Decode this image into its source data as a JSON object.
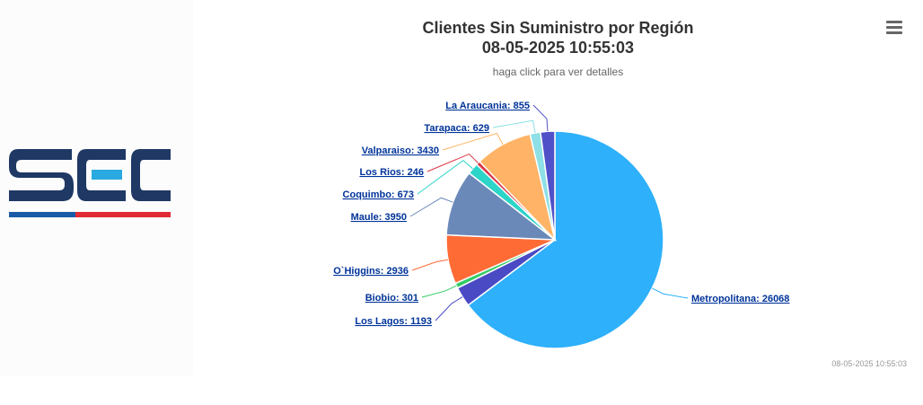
{
  "logo": {
    "text": "SEC",
    "colors": {
      "navy": "#1f3864",
      "light_blue": "#29a9e0",
      "red": "#e02b35",
      "blue": "#1a5ba8"
    }
  },
  "menu": {
    "icon": "hamburger-menu-icon"
  },
  "chart": {
    "title_line1": "Clientes Sin Suministro por Región",
    "title_line2": "08-05-2025 10:55:03",
    "subtitle": "haga click para ver detalles",
    "credit": "08-05-2025 10:55:03"
  },
  "chart_data": {
    "type": "pie",
    "title": "Clientes Sin Suministro por Región 08-05-2025 10:55:03",
    "subtitle": "haga click para ver detalles",
    "data_label_format": "{name}: {value}",
    "start_angle_deg": 0,
    "slices": [
      {
        "name": "Metropolitana",
        "value": 26068,
        "color": "#2eb0fb"
      },
      {
        "name": "Los Lagos",
        "value": 1193,
        "color": "#4a4ac5"
      },
      {
        "name": "Biobio",
        "value": 301,
        "color": "#33cc66"
      },
      {
        "name": "O`Higgins",
        "value": 2936,
        "color": "#ff6b35"
      },
      {
        "name": "Maule",
        "value": 3950,
        "color": "#6a89b9"
      },
      {
        "name": "Coquimbo",
        "value": 673,
        "color": "#2dd4c8"
      },
      {
        "name": "Los Rios",
        "value": 246,
        "color": "#dc3545"
      },
      {
        "name": "Valparaiso",
        "value": 3430,
        "color": "#ffb366"
      },
      {
        "name": "Tarapaca",
        "value": 629,
        "color": "#8ee0e6"
      },
      {
        "name": "La Araucania",
        "value": 855,
        "color": "#5050c8"
      }
    ]
  }
}
